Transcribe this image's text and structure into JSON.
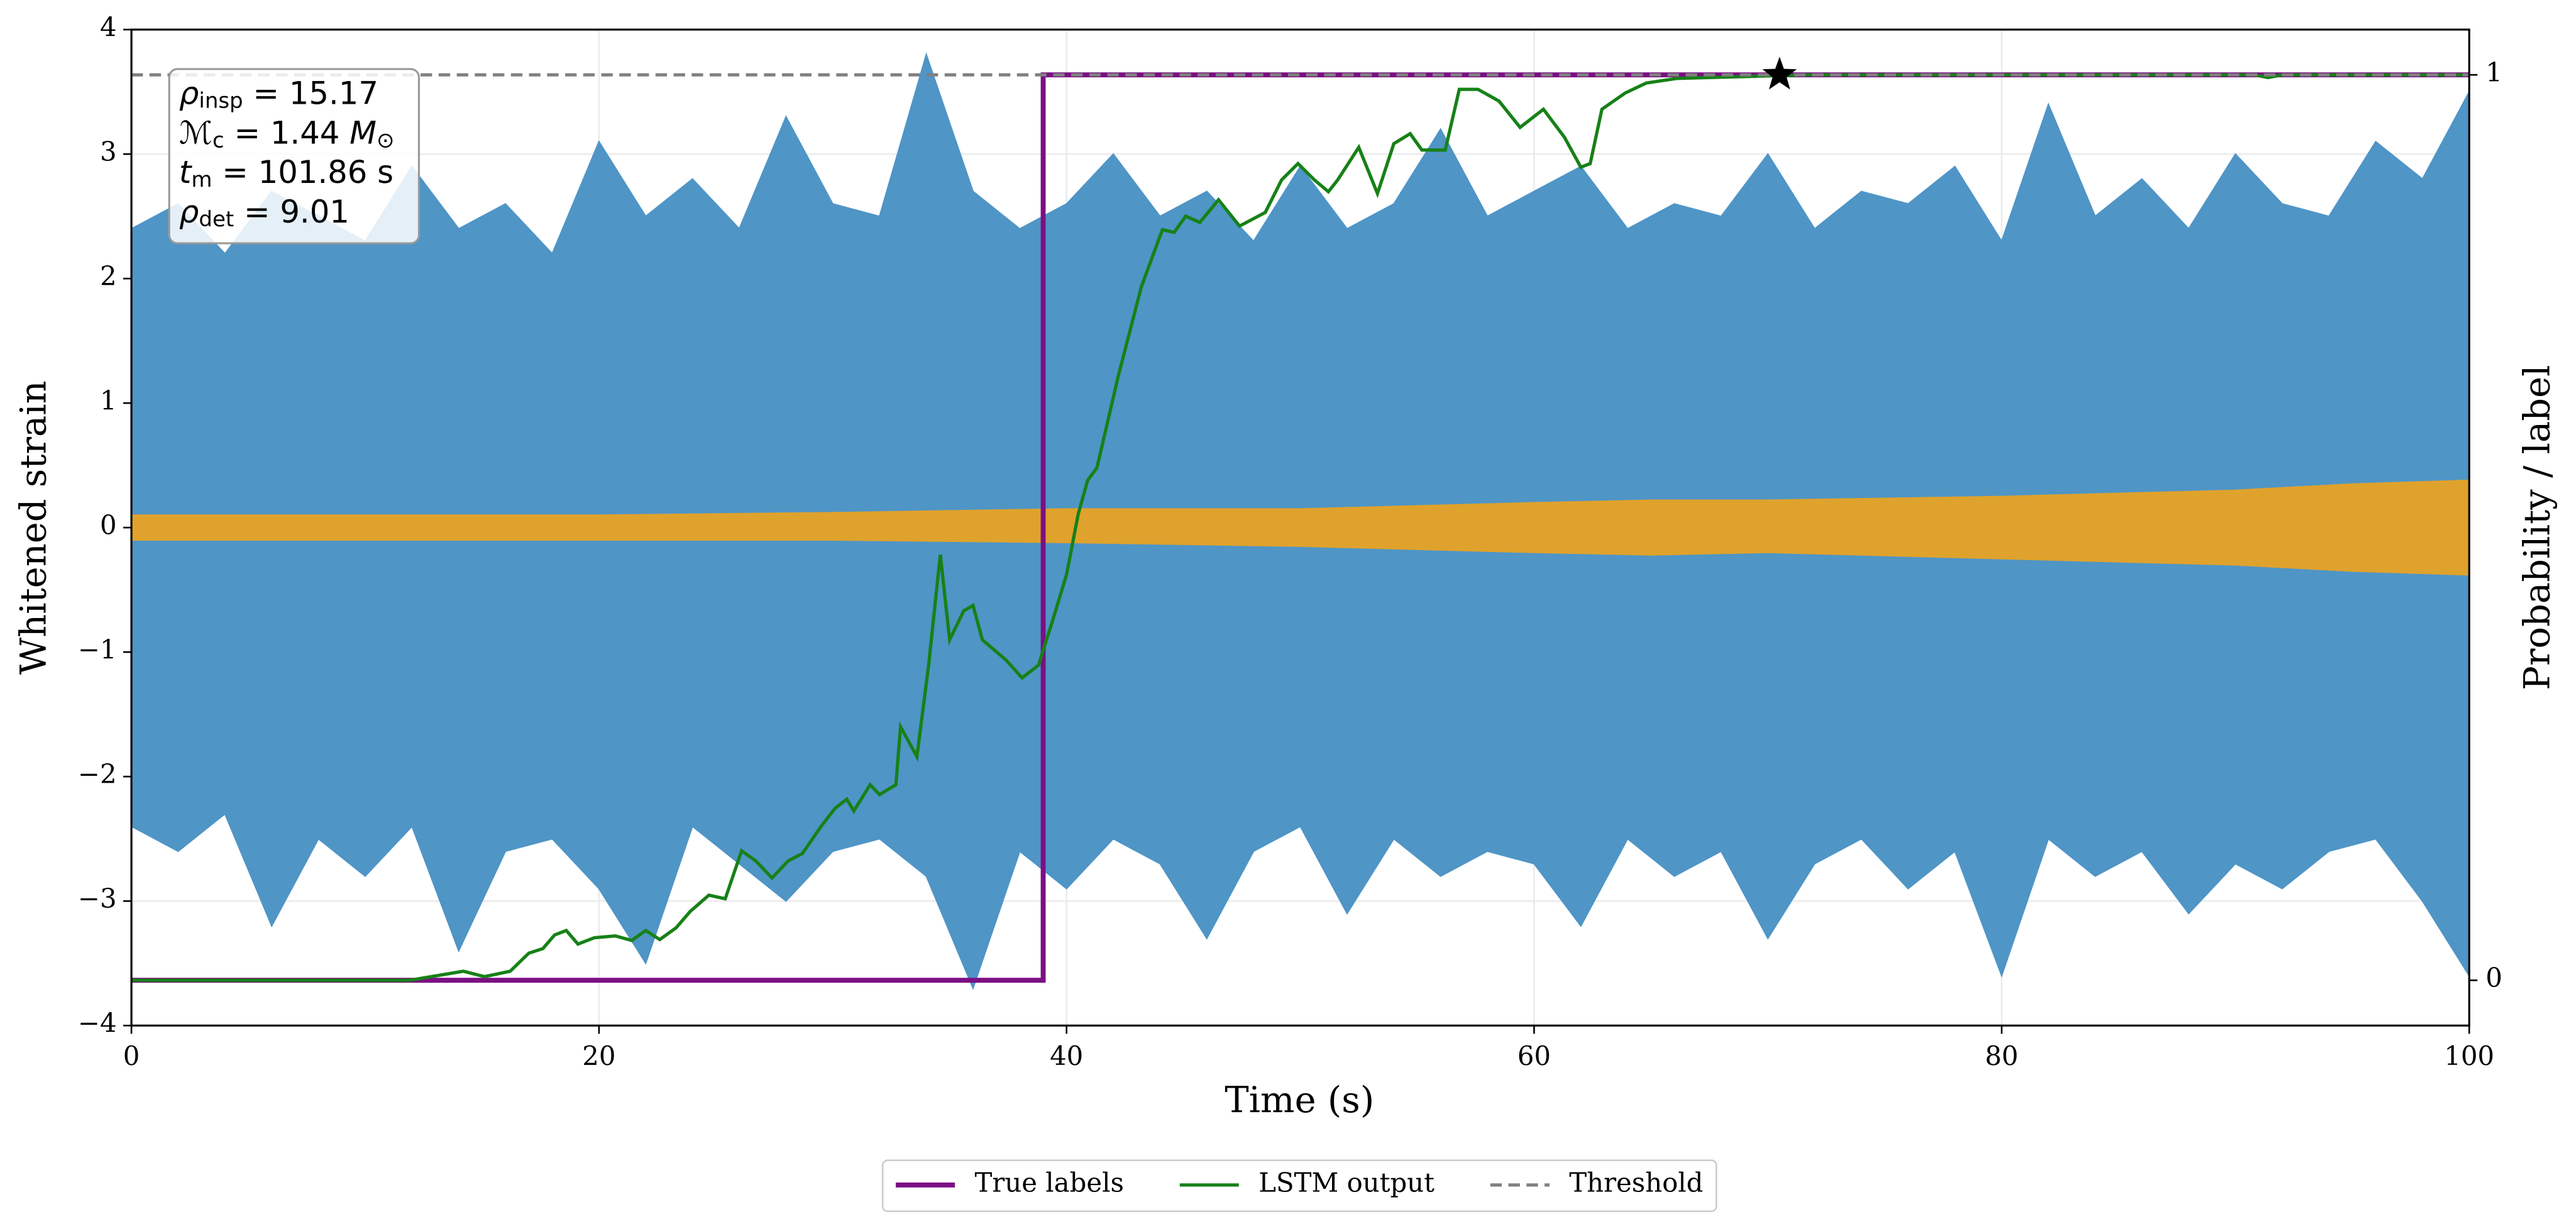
{
  "chart_data": {
    "type": "line",
    "xlabel": "Time (s)",
    "ylabel": "Whitened strain",
    "y2label": "Probability / label",
    "xlim": [
      0,
      100
    ],
    "ylim": [
      -4,
      4
    ],
    "y2lim": [
      -0.05,
      1.05
    ],
    "xticks": [
      0,
      20,
      40,
      60,
      80,
      100
    ],
    "yticks": [
      {
        "value": -4,
        "label": "−4"
      },
      {
        "value": -3,
        "label": "−3"
      },
      {
        "value": -2,
        "label": "−2"
      },
      {
        "value": -1,
        "label": "−1"
      },
      0,
      1,
      2,
      3,
      4
    ],
    "y2ticks": [
      0,
      1
    ],
    "grid": true,
    "legend": "bottom",
    "series": [
      {
        "style": "band",
        "color": "#4f95c6",
        "x": [
          0,
          2,
          4,
          6,
          8,
          10,
          12,
          14,
          16,
          18,
          20,
          22,
          24,
          26,
          28,
          30,
          32,
          34,
          36,
          38,
          40,
          42,
          44,
          46,
          48,
          50,
          52,
          54,
          56,
          58,
          60,
          62,
          64,
          66,
          68,
          70,
          72,
          74,
          76,
          78,
          80,
          82,
          84,
          86,
          88,
          90,
          92,
          94,
          96,
          98,
          100
        ],
        "values": [
          2.4,
          2.6,
          2.2,
          2.7,
          2.5,
          2.3,
          2.9,
          2.4,
          2.6,
          2.2,
          3.1,
          2.5,
          2.8,
          2.4,
          3.3,
          2.6,
          2.5,
          3.8,
          2.7,
          2.4,
          2.6,
          3.0,
          2.5,
          2.7,
          2.3,
          2.9,
          2.4,
          2.6,
          3.2,
          2.5,
          2.7,
          2.9,
          2.4,
          2.6,
          2.5,
          3.0,
          2.4,
          2.7,
          2.6,
          2.9,
          2.3,
          3.4,
          2.5,
          2.8,
          2.4,
          3.0,
          2.6,
          2.5,
          3.1,
          2.8,
          3.5
        ],
        "lower": [
          -2.4,
          -2.6,
          -2.3,
          -3.2,
          -2.5,
          -2.8,
          -2.4,
          -3.4,
          -2.6,
          -2.5,
          -2.9,
          -3.5,
          -2.4,
          -2.7,
          -3.0,
          -2.6,
          -2.5,
          -2.8,
          -3.7,
          -2.6,
          -2.9,
          -2.5,
          -2.7,
          -3.3,
          -2.6,
          -2.4,
          -3.1,
          -2.5,
          -2.8,
          -2.6,
          -2.7,
          -3.2,
          -2.5,
          -2.8,
          -2.6,
          -3.3,
          -2.7,
          -2.5,
          -2.9,
          -2.6,
          -3.6,
          -2.5,
          -2.8,
          -2.6,
          -3.1,
          -2.7,
          -2.9,
          -2.6,
          -2.5,
          -3.0,
          -3.6
        ]
      },
      {
        "style": "band",
        "color": "#dfa22c",
        "x": [
          0,
          10,
          20,
          30,
          40,
          50,
          60,
          65,
          70,
          80,
          90,
          95,
          100
        ],
        "values": [
          0.1,
          0.1,
          0.1,
          0.12,
          0.15,
          0.15,
          0.2,
          0.22,
          0.22,
          0.25,
          0.3,
          0.35,
          0.38
        ],
        "lower": [
          -0.1,
          -0.1,
          -0.1,
          -0.1,
          -0.12,
          -0.15,
          -0.2,
          -0.22,
          -0.2,
          -0.25,
          -0.3,
          -0.35,
          -0.38
        ]
      },
      {
        "name": "True labels",
        "style": "line",
        "color": "#7b0f83",
        "width": 3,
        "axis": "y2",
        "x": [
          0,
          39,
          39,
          100
        ],
        "values": [
          0,
          0,
          1,
          1
        ]
      },
      {
        "name": "LSTM output",
        "style": "line",
        "color": "#178117",
        "width": 2,
        "axis": "y2",
        "x": [
          0,
          11.9,
          14.2,
          15.1,
          16.2,
          17.0,
          17.6,
          18.1,
          18.6,
          19.1,
          19.8,
          20.7,
          21.4,
          22.0,
          22.6,
          23.3,
          23.9,
          24.7,
          25.4,
          26.1,
          26.7,
          27.4,
          28.1,
          28.7,
          29.5,
          30.1,
          30.6,
          30.9,
          31.6,
          32.0,
          32.7,
          32.9,
          33.6,
          34.1,
          34.6,
          35.0,
          35.6,
          36.0,
          36.4,
          37.4,
          38.1,
          38.8,
          39.4,
          40.0,
          40.5,
          40.9,
          41.3,
          42.2,
          43.2,
          44.1,
          44.6,
          45.1,
          45.7,
          46.5,
          47.4,
          48.5,
          49.2,
          49.9,
          50.6,
          51.2,
          51.6,
          52.5,
          53.3,
          54.0,
          54.7,
          55.2,
          56.2,
          56.8,
          57.6,
          58.5,
          59.4,
          60.4,
          61.3,
          62.0,
          62.4,
          62.9,
          63.9,
          64.8,
          66.1,
          71.7,
          90.8,
          91.4,
          92.0,
          100
        ],
        "values": [
          0,
          0,
          0.01,
          0.004,
          0.01,
          0.03,
          0.035,
          0.05,
          0.055,
          0.04,
          0.047,
          0.049,
          0.044,
          0.055,
          0.045,
          0.058,
          0.076,
          0.094,
          0.09,
          0.143,
          0.132,
          0.113,
          0.132,
          0.14,
          0.17,
          0.19,
          0.2,
          0.187,
          0.216,
          0.205,
          0.216,
          0.28,
          0.247,
          0.348,
          0.47,
          0.376,
          0.408,
          0.414,
          0.376,
          0.354,
          0.334,
          0.348,
          0.397,
          0.448,
          0.515,
          0.552,
          0.566,
          0.666,
          0.766,
          0.829,
          0.826,
          0.844,
          0.837,
          0.862,
          0.833,
          0.848,
          0.884,
          0.902,
          0.884,
          0.871,
          0.884,
          0.92,
          0.869,
          0.924,
          0.935,
          0.917,
          0.917,
          0.984,
          0.984,
          0.971,
          0.942,
          0.962,
          0.931,
          0.898,
          0.902,
          0.962,
          0.98,
          0.991,
          0.996,
          1,
          1,
          0.997,
          1,
          1
        ]
      },
      {
        "name": "Threshold",
        "style": "line",
        "color": "#808080",
        "width": 2,
        "dash": true,
        "axis": "y2",
        "x": [
          0,
          100
        ],
        "values": [
          1,
          1
        ]
      }
    ],
    "marker": {
      "x": 70.5,
      "y": 1,
      "axis": "y2",
      "color": "#000000"
    },
    "annotation": [
      [
        {
          "text": "ρ",
          "style": "italic"
        },
        {
          "text": "insp",
          "style": "sub"
        },
        {
          "text": " = 15.17"
        }
      ],
      [
        {
          "text": "ℳ",
          "style": "italic"
        },
        {
          "text": "c",
          "style": "sub"
        },
        {
          "text": " = 1.44 "
        },
        {
          "text": "M",
          "style": "italic"
        },
        {
          "text": "⊙",
          "style": "sub"
        }
      ],
      [
        {
          "text": "t",
          "style": "italic"
        },
        {
          "text": "m",
          "style": "sub"
        },
        {
          "text": " = 101.86 s"
        }
      ],
      [
        {
          "text": "ρ",
          "style": "italic"
        },
        {
          "text": "det",
          "style": "sub"
        },
        {
          "text": " = 9.01"
        }
      ]
    ]
  }
}
